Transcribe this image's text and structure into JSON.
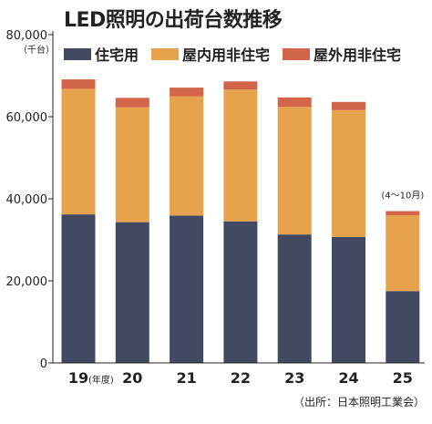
{
  "title": "LED照明の出荷台数推移",
  "unit_label": "（千台）",
  "source": "（出所：日本照明工業会）",
  "colors": {
    "residential": "#424a62",
    "non_residential_indoor": "#e6a24c",
    "non_residential_outdoor": "#d2654a"
  },
  "chart_data": {
    "type": "bar",
    "stacked": true,
    "categories": [
      "19",
      "20",
      "21",
      "22",
      "23",
      "24",
      "25"
    ],
    "x_unit_note": "(年度)",
    "category_notes": {
      "25": "(4〜10月)"
    },
    "series": [
      {
        "name": "住宅用",
        "values": [
          36200,
          34300,
          35900,
          34500,
          31300,
          30700,
          17500
        ]
      },
      {
        "name": "屋内用非住宅",
        "values": [
          30600,
          28000,
          29100,
          32100,
          31100,
          30900,
          18500
        ]
      },
      {
        "name": "屋外用非住宅",
        "values": [
          2300,
          2300,
          2100,
          2000,
          2300,
          2000,
          1000
        ]
      }
    ],
    "ylim": [
      0,
      80000
    ],
    "yticks": [
      "0",
      "20,000",
      "40,000",
      "60,000",
      "80,000"
    ],
    "ytick_values": [
      0,
      20000,
      40000,
      60000,
      80000
    ],
    "legend_position": "top",
    "grid": false
  }
}
